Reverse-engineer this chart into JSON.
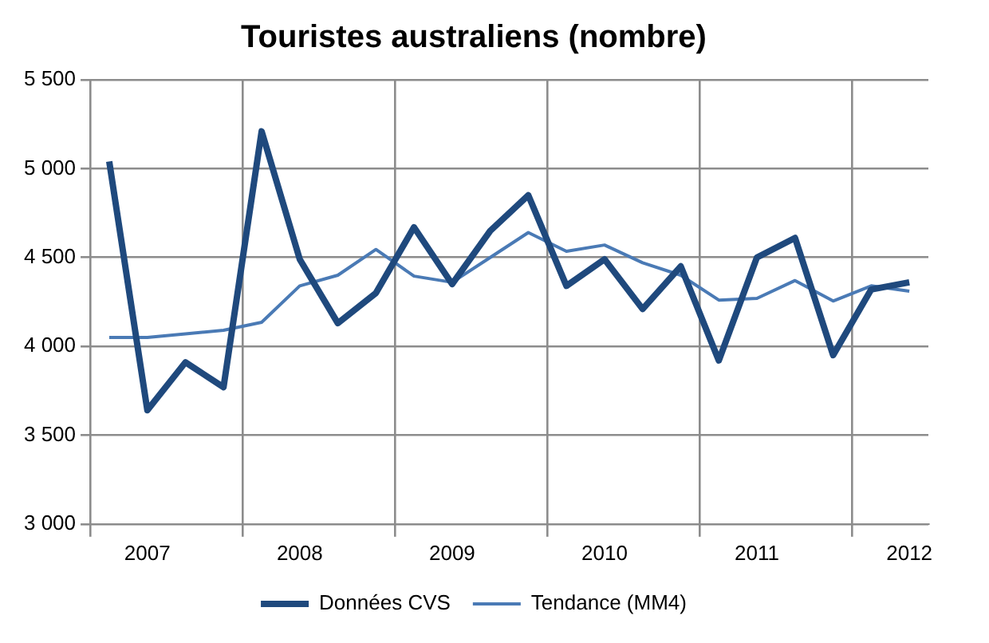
{
  "chart_data": {
    "type": "line",
    "title": "Touristes australiens (nombre)",
    "categories": [
      null,
      "2007",
      null,
      null,
      null,
      "2008",
      null,
      null,
      null,
      "2009",
      null,
      null,
      null,
      "2010",
      null,
      null,
      null,
      "2011",
      null,
      null,
      null,
      "2012"
    ],
    "series": [
      {
        "name": "Données CVS",
        "color": "#1f497d",
        "values": [
          5040,
          3640,
          3910,
          3770,
          5210,
          4490,
          4130,
          4300,
          4670,
          4350,
          4650,
          4850,
          4340,
          4490,
          4210,
          4450,
          3920,
          4500,
          4610,
          3950,
          4320,
          4360
        ]
      },
      {
        "name": "Tendance (MM4)",
        "color": "#4a7ab5",
        "values": [
          4050,
          4050,
          4070,
          4090,
          4135,
          4340,
          4400,
          4545,
          4395,
          4360,
          4500,
          4640,
          4535,
          4570,
          4470,
          4400,
          4260,
          4270,
          4370,
          4255,
          4340,
          4310
        ]
      }
    ],
    "ylim": [
      3000,
      5500
    ],
    "yticks": [
      {
        "value": 3000,
        "label": "3 000"
      },
      {
        "value": 3500,
        "label": "3 500"
      },
      {
        "value": 4000,
        "label": "4 000"
      },
      {
        "value": 4500,
        "label": "4 500"
      },
      {
        "value": 5000,
        "label": "5 000"
      },
      {
        "value": 5500,
        "label": "5 500"
      }
    ],
    "grid": true,
    "legend": "bottom",
    "marker": "none",
    "line_style": "solid"
  }
}
